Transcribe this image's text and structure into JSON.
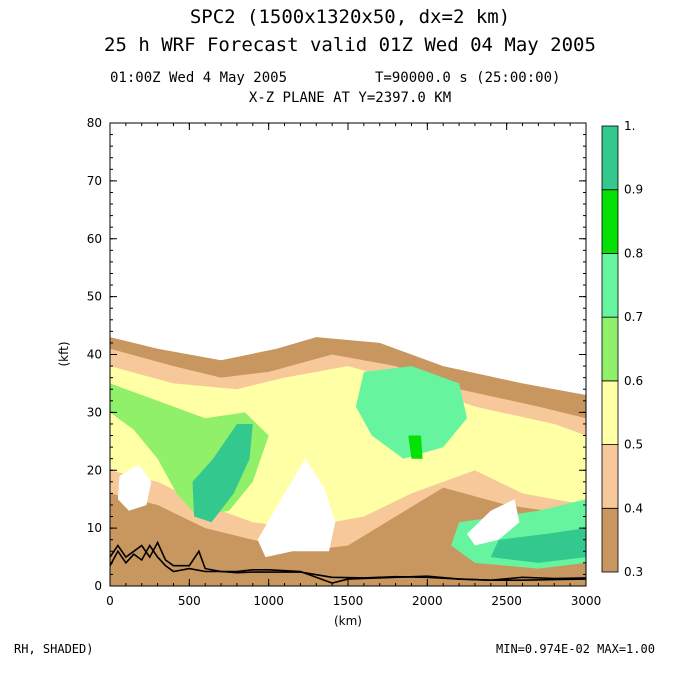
{
  "header": {
    "title_line1": "SPC2 (1500x1320x50, dx=2 km)",
    "title_line2": "25 h  WRF Forecast valid 01Z Wed 04 May 2005",
    "info_left": "01:00Z Wed  4 May 2005",
    "info_right": "T=90000.0 s (25:00:00)",
    "plane_label": "X-Z PLANE AT Y=2397.0 KM"
  },
  "footer": {
    "left": "RH, SHADED)",
    "right": "MIN=0.974E-02 MAX=1.00"
  },
  "chart_data": {
    "type": "heatmap",
    "title": "X-Z PLANE AT Y=2397.0 KM",
    "xlabel": "(km)",
    "ylabel": "(kft)",
    "xlim": [
      0,
      3000
    ],
    "ylim": [
      0,
      80
    ],
    "x_ticks": [
      "0",
      "500",
      "1000",
      "1500",
      "2000",
      "2500",
      "3000"
    ],
    "y_ticks": [
      "0",
      "10",
      "20",
      "30",
      "40",
      "50",
      "60",
      "70",
      "80"
    ],
    "grid": false,
    "colorbar": {
      "position": "right",
      "tick_labels": [
        "0.3",
        "0.4",
        "0.5",
        "0.6",
        "0.7",
        "0.8",
        "0.9",
        "1."
      ],
      "levels": [
        0.3,
        0.4,
        0.5,
        0.6,
        0.7,
        0.8,
        0.9,
        1.0
      ],
      "colors": [
        "#c8975f",
        "#f7c99a",
        "#ffffa6",
        "#90f069",
        "#66f59e",
        "#05e105",
        "#33c98e"
      ]
    },
    "fields": [
      {
        "name": "moist layer",
        "level": 0.3,
        "x": [
          [
            0,
            3000
          ]
        ],
        "top": [
          [
            0,
            43
          ],
          [
            300,
            41
          ],
          [
            700,
            39
          ],
          [
            1050,
            41
          ],
          [
            1300,
            43
          ],
          [
            1700,
            42
          ],
          [
            2100,
            38
          ],
          [
            2600,
            35
          ],
          [
            3000,
            33
          ]
        ],
        "bottom": 0
      },
      {
        "name": "0.4 region",
        "level": 0.4,
        "outline": [
          [
            0,
            41
          ],
          [
            400,
            38
          ],
          [
            700,
            36
          ],
          [
            1000,
            37
          ],
          [
            1400,
            40
          ],
          [
            1800,
            38
          ],
          [
            2200,
            34
          ],
          [
            2700,
            31
          ],
          [
            3000,
            29
          ],
          [
            3000,
            12
          ],
          [
            2500,
            14
          ],
          [
            2100,
            17
          ],
          [
            1800,
            12
          ],
          [
            1500,
            7
          ],
          [
            1200,
            6
          ],
          [
            900,
            8
          ],
          [
            600,
            10
          ],
          [
            300,
            14
          ],
          [
            0,
            16
          ]
        ]
      },
      {
        "name": "0.5 region",
        "level": 0.5,
        "outline": [
          [
            0,
            38
          ],
          [
            400,
            35
          ],
          [
            800,
            34
          ],
          [
            1100,
            36
          ],
          [
            1500,
            38
          ],
          [
            1900,
            35
          ],
          [
            2300,
            31
          ],
          [
            2800,
            28
          ],
          [
            3000,
            26
          ],
          [
            3000,
            14
          ],
          [
            2600,
            16
          ],
          [
            2300,
            20
          ],
          [
            1900,
            16
          ],
          [
            1600,
            12
          ],
          [
            1200,
            10
          ],
          [
            900,
            11
          ],
          [
            600,
            14
          ],
          [
            300,
            18
          ],
          [
            0,
            20
          ]
        ]
      },
      {
        "name": "0.6 region",
        "level": 0.6,
        "outline": [
          [
            0,
            35
          ],
          [
            300,
            32
          ],
          [
            600,
            29
          ],
          [
            850,
            30
          ],
          [
            1000,
            26
          ],
          [
            900,
            18
          ],
          [
            750,
            13
          ],
          [
            550,
            12
          ],
          [
            420,
            16
          ],
          [
            300,
            22
          ],
          [
            150,
            27
          ],
          [
            0,
            30
          ]
        ]
      },
      {
        "name": "0.7 region",
        "level": 0.7,
        "outline": [
          [
            1600,
            37
          ],
          [
            1900,
            38
          ],
          [
            2200,
            35
          ],
          [
            2250,
            29
          ],
          [
            2100,
            24
          ],
          [
            1850,
            22
          ],
          [
            1650,
            26
          ],
          [
            1550,
            31
          ]
        ]
      },
      {
        "name": "0.7 low",
        "level": 0.7,
        "outline": [
          [
            2200,
            11
          ],
          [
            2700,
            13
          ],
          [
            3000,
            15
          ],
          [
            3000,
            4
          ],
          [
            2700,
            3
          ],
          [
            2300,
            4
          ],
          [
            2150,
            7
          ]
        ]
      },
      {
        "name": "0.8 core",
        "level": 0.8,
        "outline": [
          [
            1880,
            26
          ],
          [
            1960,
            26
          ],
          [
            1970,
            22
          ],
          [
            1900,
            22
          ]
        ]
      },
      {
        "name": "0.9 core",
        "level": 0.9,
        "outline": [
          [
            520,
            18
          ],
          [
            650,
            22
          ],
          [
            800,
            28
          ],
          [
            900,
            28
          ],
          [
            880,
            22
          ],
          [
            780,
            16
          ],
          [
            640,
            11
          ],
          [
            530,
            12
          ]
        ]
      },
      {
        "name": "1.0 low",
        "level": 1.0,
        "outline": [
          [
            2450,
            8
          ],
          [
            2750,
            9
          ],
          [
            3000,
            10
          ],
          [
            3000,
            5
          ],
          [
            2700,
            4
          ],
          [
            2400,
            5
          ]
        ]
      }
    ],
    "dry_pockets": [
      {
        "name": "dry pocket 1",
        "outline": [
          [
            60,
            19
          ],
          [
            180,
            21
          ],
          [
            260,
            18
          ],
          [
            230,
            14
          ],
          [
            120,
            13
          ],
          [
            50,
            15
          ]
        ]
      },
      {
        "name": "dry pocket 2",
        "outline": [
          [
            930,
            8
          ],
          [
            1100,
            16
          ],
          [
            1230,
            22
          ],
          [
            1350,
            17
          ],
          [
            1420,
            11
          ],
          [
            1380,
            6
          ],
          [
            1150,
            6
          ],
          [
            980,
            5
          ]
        ]
      },
      {
        "name": "dry pocket 3",
        "outline": [
          [
            2250,
            9
          ],
          [
            2400,
            13
          ],
          [
            2550,
            15
          ],
          [
            2580,
            11
          ],
          [
            2450,
            8
          ],
          [
            2300,
            7
          ]
        ]
      }
    ],
    "terrain": [
      {
        "name": "terrain line 1",
        "x": [
          0,
          50,
          100,
          150,
          200,
          250,
          300,
          350,
          400,
          500,
          600,
          700,
          800,
          900,
          1000,
          1200,
          1400,
          1600,
          1800,
          2000,
          2200,
          2400,
          2600,
          2800,
          3000
        ],
        "y": [
          3.5,
          6,
          4,
          5.5,
          4.5,
          7,
          5,
          3.5,
          2.5,
          3,
          2.5,
          2.5,
          2.3,
          2.4,
          2.4,
          2.4,
          1.5,
          1.4,
          1.6,
          1.5,
          1.2,
          1.0,
          1.0,
          1.1,
          1.2
        ]
      },
      {
        "name": "terrain line 2",
        "x": [
          0,
          50,
          100,
          150,
          200,
          250,
          300,
          350,
          400,
          500,
          560,
          600,
          700,
          800,
          900,
          1000,
          1200,
          1400,
          1500,
          1600,
          1800,
          2000,
          2200,
          2400,
          2600,
          2800,
          3000
        ],
        "y": [
          5,
          7,
          5,
          6,
          7,
          5,
          7.5,
          4.5,
          3.5,
          3.5,
          6,
          3,
          2.5,
          2.5,
          2.8,
          2.8,
          2.5,
          0.5,
          1.2,
          1.3,
          1.5,
          1.7,
          1.2,
          1.0,
          1.5,
          1.3,
          1.4
        ]
      }
    ]
  }
}
